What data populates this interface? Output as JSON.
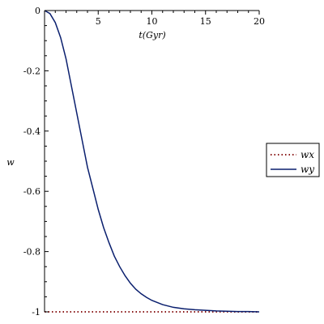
{
  "chart_data": {
    "type": "line",
    "xlabel": "t(Gyr)",
    "ylabel": "w",
    "xlim": [
      0,
      20
    ],
    "ylim": [
      -1,
      0
    ],
    "x_ticks": [
      "5",
      "10",
      "15",
      "20"
    ],
    "y_ticks": [
      "0",
      "-0.2",
      "-0.4",
      "-0.6",
      "-0.8",
      "-1"
    ],
    "grid": false,
    "legend_placement": "right",
    "series": [
      {
        "name": "wx",
        "color": "#8b1a1a",
        "style": "dotted",
        "x": [
          0,
          2,
          4,
          6,
          8,
          10,
          12,
          14,
          16,
          18,
          20
        ],
        "values": [
          -1,
          -1,
          -1,
          -1,
          -1,
          -1,
          -1,
          -1,
          -1,
          -1,
          -1
        ]
      },
      {
        "name": "wy",
        "color": "#0a1f6e",
        "style": "solid",
        "x": [
          0,
          0.5,
          1,
          1.5,
          2,
          2.5,
          3,
          3.5,
          4,
          4.5,
          5,
          5.5,
          6,
          6.5,
          7,
          7.5,
          8,
          8.5,
          9,
          9.5,
          10,
          11,
          12,
          13,
          14,
          15,
          16,
          17,
          18,
          19,
          20
        ],
        "values": [
          0,
          -0.01,
          -0.04,
          -0.09,
          -0.16,
          -0.25,
          -0.34,
          -0.43,
          -0.52,
          -0.59,
          -0.66,
          -0.72,
          -0.77,
          -0.815,
          -0.85,
          -0.88,
          -0.905,
          -0.925,
          -0.94,
          -0.952,
          -0.962,
          -0.976,
          -0.985,
          -0.99,
          -0.993,
          -0.995,
          -0.997,
          -0.998,
          -0.999,
          -0.999,
          -1
        ]
      }
    ]
  }
}
